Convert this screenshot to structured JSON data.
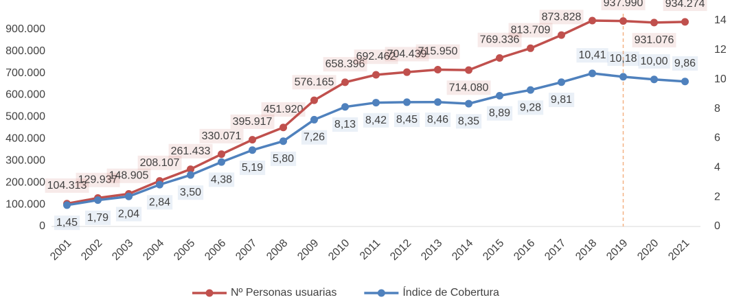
{
  "chart_data": {
    "type": "line",
    "categories": [
      "2001",
      "2002",
      "2003",
      "2004",
      "2005",
      "2006",
      "2007",
      "2008",
      "2009",
      "2010",
      "2011",
      "2012",
      "2013",
      "2014",
      "2015",
      "2016",
      "2017",
      "2018",
      "2019",
      "2020",
      "2021"
    ],
    "series": [
      {
        "name": "Nº Personas usuarias",
        "color": "#c0504d",
        "values": [
          104313,
          129937,
          148905,
          208107,
          261433,
          330071,
          395917,
          451920,
          576165,
          658396,
          692462,
          704439,
          715950,
          714080,
          769336,
          813709,
          873828,
          940000,
          937990,
          931076,
          934274
        ],
        "value_labels": [
          "104.313",
          "129.937",
          "148.905",
          "208.107",
          "261.433",
          "330.071",
          "395.917",
          "451.920",
          "576.165",
          "658.396",
          "692.462",
          "704.439",
          "715.950",
          "714.080",
          "769.336",
          "813.709",
          "873.828",
          null,
          "937.990",
          "931.076",
          "934.274"
        ]
      },
      {
        "name": "Índice de Cobertura",
        "color": "#4f81bd",
        "axis": "y2",
        "values": [
          1.45,
          1.79,
          2.04,
          2.84,
          3.5,
          4.38,
          5.19,
          5.8,
          7.26,
          8.13,
          8.42,
          8.45,
          8.46,
          8.35,
          8.89,
          9.28,
          9.81,
          10.41,
          10.18,
          10.0,
          9.86
        ],
        "value_labels": [
          "1,45",
          "1,79",
          "2,04",
          "2,84",
          "3,50",
          "4,38",
          "5,19",
          "5,80",
          "7,26",
          "8,13",
          "8,42",
          "8,45",
          "8,46",
          "8,35",
          "8,89",
          "9,28",
          "9,81",
          "10,41",
          "10,18",
          "10,00",
          "9,86"
        ]
      }
    ],
    "ylim": [
      0,
      940000
    ],
    "yticks": [
      0,
      {
        "value": 100000,
        "label": "100.000"
      },
      {
        "value": 200000,
        "label": "200.000"
      },
      {
        "value": 300000,
        "label": "300.000"
      },
      {
        "value": 400000,
        "label": "400.000"
      },
      {
        "value": 500000,
        "label": "500.000"
      },
      {
        "value": 600000,
        "label": "600.000"
      },
      {
        "value": 700000,
        "label": "700.000"
      },
      {
        "value": 800000,
        "label": "800.000"
      },
      {
        "value": 900000,
        "label": "900.000"
      }
    ],
    "y2lim": [
      0,
      14
    ],
    "y2ticks": [
      0,
      2,
      4,
      6,
      8,
      10,
      12,
      14
    ],
    "grid": false,
    "legend": "bottom",
    "reference_line": {
      "category": "2019",
      "color": "#f4b183"
    }
  }
}
